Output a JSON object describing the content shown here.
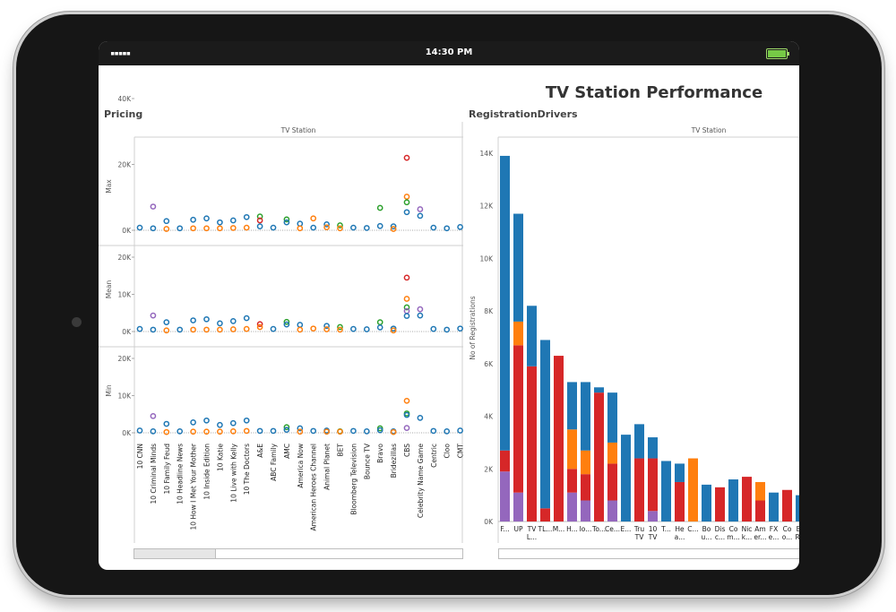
{
  "status": {
    "signal": "▪▪▪▪▪",
    "time": "14:30 PM"
  },
  "dashboard_title": "TV Station Performance",
  "colors": {
    "blue": "#1f77b4",
    "orange": "#ff7f0e",
    "red": "#d62728",
    "purple": "#9467bd",
    "green": "#2ca02c"
  },
  "pricing": {
    "title": "Pricing",
    "header": "TV Station",
    "stations": [
      "10 CNN",
      "10 Criminal Minds",
      "10 Family Feud",
      "10 Headline News",
      "10 How I Met Your Mother",
      "10 Inside Edition",
      "10 Katie",
      "10 Live with Kelly",
      "10 The Doctors",
      "A&E",
      "ABC Family",
      "AMC",
      "America Now",
      "American Heroes Channel",
      "Animal Planet",
      "BET",
      "Bloomberg Television",
      "Bounce TV",
      "Bravo",
      "Bridezillas",
      "CBS",
      "Celebrity Name Game",
      "Centric",
      "Cloo",
      "CMT"
    ]
  },
  "registration": {
    "title": "RegistrationDrivers",
    "header": "TV Station",
    "ylabel": "No of Registrations",
    "xlabels": [
      [
        "F..."
      ],
      [
        "UP"
      ],
      [
        "TV",
        "L..."
      ],
      [
        "TL..."
      ],
      [
        "M..."
      ],
      [
        "H..."
      ],
      [
        "Io..."
      ],
      [
        "To..."
      ],
      [
        "Ce..."
      ],
      [
        "E..."
      ],
      [
        "Tru",
        "TV"
      ],
      [
        "10",
        "TV"
      ],
      [
        "T..."
      ],
      [
        "He",
        "a..."
      ],
      [
        "C..."
      ],
      [
        "Bo",
        "u..."
      ],
      [
        "Dis",
        "c..."
      ],
      [
        "Co",
        "m..."
      ],
      [
        "Nic",
        "k..."
      ],
      [
        "Am",
        "er..."
      ],
      [
        "FX",
        "e..."
      ],
      [
        "Co",
        "o..."
      ],
      [
        "Bo",
        "R..."
      ]
    ]
  },
  "chart_data": [
    {
      "type": "scatter",
      "title": "Pricing",
      "xlabel": "TV Station",
      "categories": [
        "10 CNN",
        "10 Criminal Minds",
        "10 Family Feud",
        "10 Headline News",
        "10 How I Met Your Mother",
        "10 Inside Edition",
        "10 Katie",
        "10 Live with Kelly",
        "10 The Doctors",
        "A&E",
        "ABC Family",
        "AMC",
        "America Now",
        "American Heroes Channel",
        "Animal Planet",
        "BET",
        "Bloomberg Television",
        "Bounce TV",
        "Bravo",
        "Bridezillas",
        "CBS",
        "Celebrity Name Game",
        "Centric",
        "Cloo",
        "CMT"
      ],
      "panels": [
        {
          "ylabel": "Max",
          "ylim": [
            0,
            40000
          ],
          "yticks": [
            "0K",
            "20K",
            "40K"
          ],
          "points": [
            [
              0,
              "blue",
              800
            ],
            [
              1,
              "purple",
              7200
            ],
            [
              1,
              "blue",
              600
            ],
            [
              2,
              "blue",
              2800
            ],
            [
              2,
              "orange",
              400
            ],
            [
              3,
              "blue",
              600
            ],
            [
              4,
              "blue",
              3200
            ],
            [
              4,
              "orange",
              600
            ],
            [
              5,
              "blue",
              3600
            ],
            [
              5,
              "orange",
              600
            ],
            [
              6,
              "blue",
              2400
            ],
            [
              6,
              "orange",
              600
            ],
            [
              7,
              "blue",
              3000
            ],
            [
              7,
              "orange",
              700
            ],
            [
              8,
              "blue",
              4000
            ],
            [
              8,
              "orange",
              800
            ],
            [
              9,
              "green",
              4200
            ],
            [
              9,
              "red",
              3000
            ],
            [
              9,
              "blue",
              1200
            ],
            [
              10,
              "blue",
              800
            ],
            [
              11,
              "green",
              3300
            ],
            [
              11,
              "blue",
              2400
            ],
            [
              12,
              "blue",
              2000
            ],
            [
              12,
              "orange",
              600
            ],
            [
              13,
              "orange",
              3600
            ],
            [
              13,
              "blue",
              800
            ],
            [
              14,
              "blue",
              1800
            ],
            [
              14,
              "orange",
              900
            ],
            [
              15,
              "green",
              1500
            ],
            [
              15,
              "orange",
              600
            ],
            [
              16,
              "blue",
              800
            ],
            [
              17,
              "blue",
              700
            ],
            [
              18,
              "green",
              6800
            ],
            [
              18,
              "blue",
              1300
            ],
            [
              19,
              "blue",
              1200
            ],
            [
              19,
              "orange",
              400
            ],
            [
              20,
              "red",
              22000
            ],
            [
              20,
              "orange",
              10200
            ],
            [
              20,
              "green",
              8500
            ],
            [
              20,
              "blue",
              5500
            ],
            [
              21,
              "purple",
              6400
            ],
            [
              21,
              "blue",
              4400
            ],
            [
              22,
              "blue",
              800
            ],
            [
              23,
              "blue",
              600
            ],
            [
              24,
              "blue",
              1000
            ]
          ]
        },
        {
          "ylabel": "Mean",
          "ylim": [
            0,
            20000
          ],
          "yticks": [
            "0K",
            "10K",
            "20K"
          ],
          "points": [
            [
              0,
              "blue",
              700
            ],
            [
              1,
              "purple",
              4300
            ],
            [
              1,
              "blue",
              500
            ],
            [
              2,
              "blue",
              2500
            ],
            [
              2,
              "orange",
              300
            ],
            [
              3,
              "blue",
              500
            ],
            [
              4,
              "blue",
              3000
            ],
            [
              4,
              "orange",
              500
            ],
            [
              5,
              "blue",
              3300
            ],
            [
              5,
              "orange",
              500
            ],
            [
              6,
              "blue",
              2200
            ],
            [
              6,
              "orange",
              500
            ],
            [
              7,
              "blue",
              2800
            ],
            [
              7,
              "orange",
              600
            ],
            [
              8,
              "blue",
              3600
            ],
            [
              8,
              "orange",
              700
            ],
            [
              9,
              "red",
              2000
            ],
            [
              9,
              "orange",
              1200
            ],
            [
              10,
              "blue",
              700
            ],
            [
              11,
              "green",
              2600
            ],
            [
              11,
              "blue",
              1900
            ],
            [
              12,
              "blue",
              1800
            ],
            [
              12,
              "orange",
              500
            ],
            [
              13,
              "orange",
              800
            ],
            [
              14,
              "blue",
              1500
            ],
            [
              14,
              "orange",
              600
            ],
            [
              15,
              "green",
              1200
            ],
            [
              15,
              "orange",
              500
            ],
            [
              16,
              "blue",
              700
            ],
            [
              17,
              "blue",
              600
            ],
            [
              18,
              "green",
              2500
            ],
            [
              18,
              "blue",
              1100
            ],
            [
              19,
              "blue",
              800
            ],
            [
              19,
              "orange",
              300
            ],
            [
              20,
              "red",
              14500
            ],
            [
              20,
              "orange",
              8800
            ],
            [
              20,
              "green",
              6500
            ],
            [
              20,
              "purple",
              5500
            ],
            [
              20,
              "blue",
              4200
            ],
            [
              21,
              "purple",
              6000
            ],
            [
              21,
              "blue",
              4300
            ],
            [
              22,
              "blue",
              700
            ],
            [
              23,
              "blue",
              500
            ],
            [
              24,
              "blue",
              800
            ]
          ]
        },
        {
          "ylabel": "Min",
          "ylim": [
            0,
            20000
          ],
          "yticks": [
            "0K",
            "10K",
            "20K"
          ],
          "points": [
            [
              0,
              "blue",
              600
            ],
            [
              1,
              "purple",
              4500
            ],
            [
              1,
              "blue",
              400
            ],
            [
              2,
              "blue",
              2400
            ],
            [
              2,
              "orange",
              200
            ],
            [
              3,
              "blue",
              400
            ],
            [
              4,
              "blue",
              2800
            ],
            [
              4,
              "orange",
              300
            ],
            [
              5,
              "blue",
              3300
            ],
            [
              5,
              "orange",
              300
            ],
            [
              6,
              "blue",
              2100
            ],
            [
              6,
              "orange",
              300
            ],
            [
              7,
              "blue",
              2600
            ],
            [
              7,
              "orange",
              400
            ],
            [
              8,
              "blue",
              3300
            ],
            [
              8,
              "orange",
              500
            ],
            [
              9,
              "blue",
              500
            ],
            [
              10,
              "blue",
              500
            ],
            [
              11,
              "green",
              1500
            ],
            [
              11,
              "blue",
              800
            ],
            [
              12,
              "blue",
              1200
            ],
            [
              12,
              "orange",
              300
            ],
            [
              13,
              "blue",
              500
            ],
            [
              14,
              "blue",
              600
            ],
            [
              14,
              "orange",
              300
            ],
            [
              15,
              "green",
              400
            ],
            [
              15,
              "orange",
              300
            ],
            [
              16,
              "blue",
              500
            ],
            [
              17,
              "blue",
              400
            ],
            [
              18,
              "green",
              1200
            ],
            [
              18,
              "blue",
              700
            ],
            [
              19,
              "blue",
              400
            ],
            [
              19,
              "orange",
              200
            ],
            [
              20,
              "orange",
              8600
            ],
            [
              20,
              "green",
              5200
            ],
            [
              20,
              "blue",
              4800
            ],
            [
              20,
              "purple",
              1300
            ],
            [
              21,
              "blue",
              4000
            ],
            [
              22,
              "blue",
              500
            ],
            [
              23,
              "blue",
              400
            ],
            [
              24,
              "blue",
              600
            ]
          ]
        }
      ]
    },
    {
      "type": "bar",
      "title": "RegistrationDrivers",
      "xlabel": "TV Station",
      "ylabel": "No of Registrations",
      "ylim": [
        0,
        14000
      ],
      "yticks": [
        "0K",
        "2K",
        "4K",
        "6K",
        "8K",
        "10K",
        "12K",
        "14K"
      ],
      "categories": [
        "F...",
        "UP",
        "TV L...",
        "TL...",
        "M...",
        "H...",
        "Io...",
        "To...",
        "Ce...",
        "E...",
        "Tru TV",
        "10 TV",
        "T...",
        "He a...",
        "C...",
        "Bo u...",
        "Dis c...",
        "Co m...",
        "Nic k...",
        "Am er...",
        "FX e...",
        "Co o...",
        "Bo R..."
      ],
      "stacks": [
        [
          [
            "purple",
            1900
          ],
          [
            "red",
            800
          ],
          [
            "blue",
            11200
          ]
        ],
        [
          [
            "purple",
            1100
          ],
          [
            "red",
            5600
          ],
          [
            "orange",
            900
          ],
          [
            "blue",
            4100
          ]
        ],
        [
          [
            "red",
            5900
          ],
          [
            "blue",
            2300
          ]
        ],
        [
          [
            "red",
            500
          ],
          [
            "blue",
            6400
          ]
        ],
        [
          [
            "red",
            6300
          ]
        ],
        [
          [
            "purple",
            1100
          ],
          [
            "red",
            900
          ],
          [
            "orange",
            1500
          ],
          [
            "blue",
            1800
          ]
        ],
        [
          [
            "purple",
            800
          ],
          [
            "red",
            1000
          ],
          [
            "orange",
            900
          ],
          [
            "blue",
            2600
          ]
        ],
        [
          [
            "red",
            4900
          ],
          [
            "blue",
            200
          ]
        ],
        [
          [
            "purple",
            800
          ],
          [
            "red",
            1400
          ],
          [
            "orange",
            800
          ],
          [
            "blue",
            1900
          ]
        ],
        [
          [
            "blue",
            3300
          ]
        ],
        [
          [
            "red",
            2400
          ],
          [
            "blue",
            1300
          ]
        ],
        [
          [
            "purple",
            400
          ],
          [
            "red",
            2000
          ],
          [
            "blue",
            800
          ]
        ],
        [
          [
            "blue",
            2300
          ]
        ],
        [
          [
            "red",
            1500
          ],
          [
            "blue",
            700
          ]
        ],
        [
          [
            "orange",
            2400
          ]
        ],
        [
          [
            "blue",
            1400
          ]
        ],
        [
          [
            "red",
            1300
          ]
        ],
        [
          [
            "blue",
            1600
          ]
        ],
        [
          [
            "red",
            1700
          ]
        ],
        [
          [
            "red",
            800
          ],
          [
            "orange",
            700
          ]
        ],
        [
          [
            "blue",
            1100
          ]
        ],
        [
          [
            "red",
            1200
          ]
        ],
        [
          [
            "blue",
            1000
          ]
        ]
      ]
    }
  ]
}
